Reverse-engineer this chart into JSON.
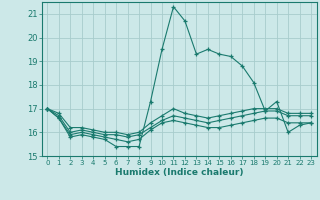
{
  "title": "",
  "xlabel": "Humidex (Indice chaleur)",
  "ylabel": "",
  "background_color": "#cce8e8",
  "grid_color": "#a8cccc",
  "line_color": "#1a7a6e",
  "xlim": [
    -0.5,
    23.5
  ],
  "ylim": [
    15,
    21.5
  ],
  "yticks": [
    15,
    16,
    17,
    18,
    19,
    20,
    21
  ],
  "xticks": [
    0,
    1,
    2,
    3,
    4,
    5,
    6,
    7,
    8,
    9,
    10,
    11,
    12,
    13,
    14,
    15,
    16,
    17,
    18,
    19,
    20,
    21,
    22,
    23
  ],
  "series": [
    [
      17.0,
      16.6,
      15.8,
      15.9,
      15.8,
      15.7,
      15.4,
      15.4,
      15.4,
      17.3,
      19.5,
      21.3,
      20.7,
      19.3,
      19.5,
      19.3,
      19.2,
      18.8,
      18.1,
      16.9,
      17.3,
      16.0,
      16.3,
      16.4
    ],
    [
      17.0,
      16.6,
      15.9,
      16.0,
      15.9,
      15.8,
      15.7,
      15.6,
      15.7,
      16.1,
      16.4,
      16.5,
      16.4,
      16.3,
      16.2,
      16.2,
      16.3,
      16.4,
      16.5,
      16.6,
      16.6,
      16.4,
      16.4,
      16.4
    ],
    [
      17.0,
      16.7,
      16.0,
      16.1,
      16.0,
      15.9,
      15.9,
      15.8,
      15.9,
      16.2,
      16.5,
      16.7,
      16.6,
      16.5,
      16.4,
      16.5,
      16.6,
      16.7,
      16.8,
      16.9,
      16.9,
      16.7,
      16.7,
      16.7
    ],
    [
      17.0,
      16.8,
      16.2,
      16.2,
      16.1,
      16.0,
      16.0,
      15.9,
      16.0,
      16.4,
      16.7,
      17.0,
      16.8,
      16.7,
      16.6,
      16.7,
      16.8,
      16.9,
      17.0,
      17.0,
      17.0,
      16.8,
      16.8,
      16.8
    ]
  ],
  "xlabel_fontsize": 6.5,
  "xtick_fontsize": 5.0,
  "ytick_fontsize": 6.0
}
